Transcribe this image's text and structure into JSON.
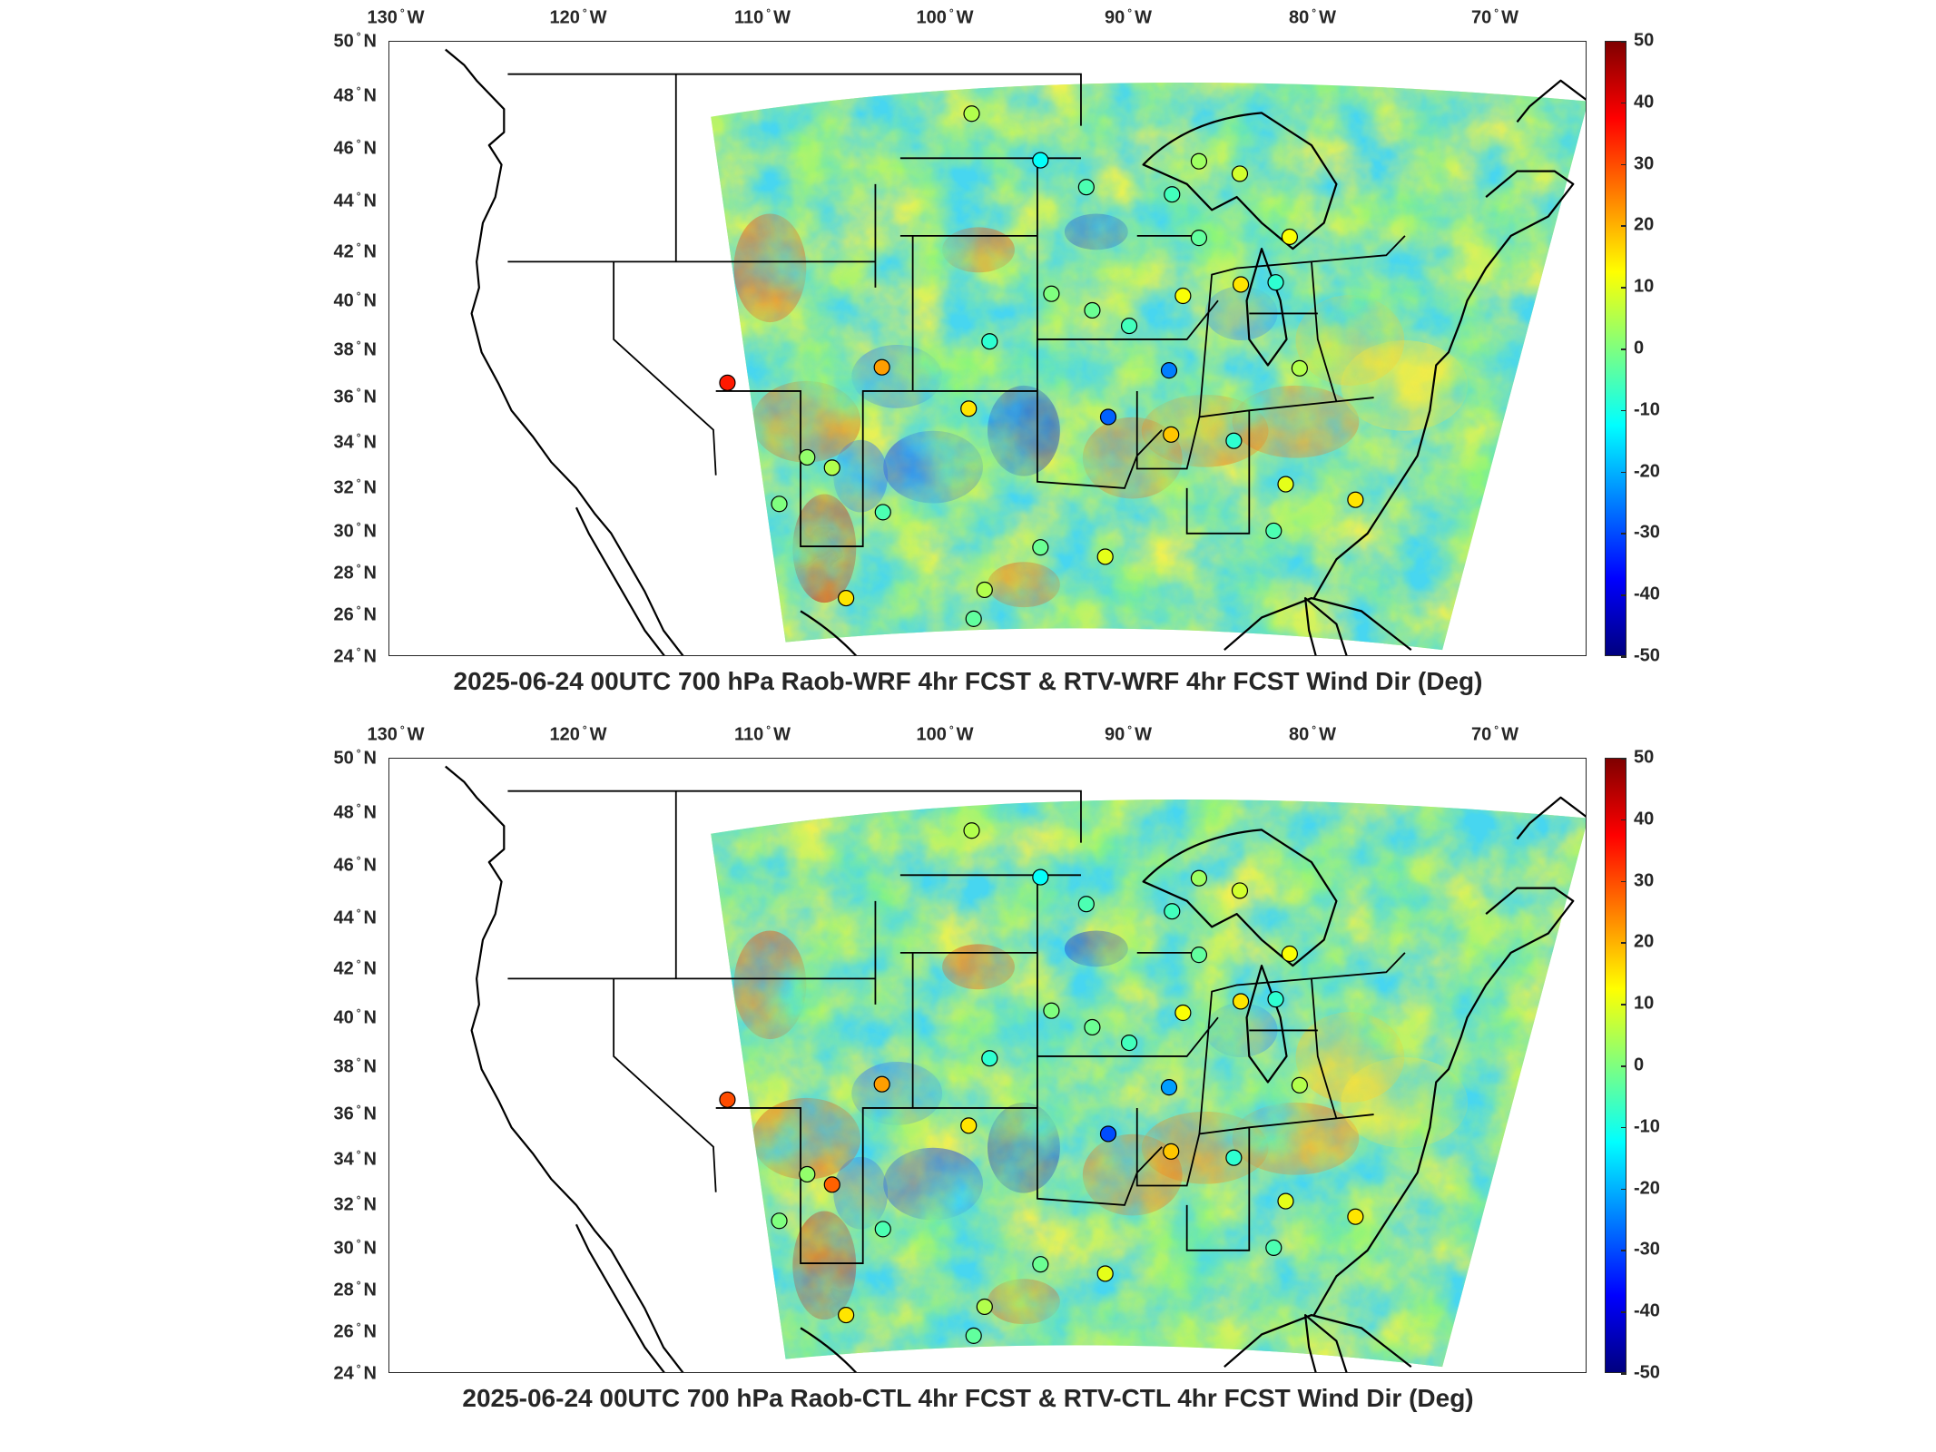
{
  "panels": [
    {
      "title": "2025-06-24 00UTC 700 hPa Raob-WRF 4hr FCST & RTV-WRF 4hr FCST Wind Dir (Deg)",
      "station_values": [
        5,
        -12,
        -5,
        3,
        8,
        12,
        -6,
        -3,
        -8,
        -25,
        -6,
        15,
        0,
        -2,
        22,
        -8,
        15,
        -28,
        18,
        12,
        5,
        -8,
        10,
        35,
        5,
        2,
        0,
        -5,
        15,
        -3,
        5,
        -2,
        10,
        -5,
        25,
        15,
        -5
      ]
    },
    {
      "title": "2025-06-24 00UTC 700 hPa Raob-CTL 4hr FCST & RTV-CTL 4hr FCST Wind Dir (Deg)",
      "station_values": [
        5,
        -12,
        -5,
        3,
        8,
        12,
        -6,
        -3,
        -8,
        -22,
        -6,
        15,
        0,
        -2,
        22,
        -8,
        15,
        -30,
        18,
        12,
        5,
        -8,
        10,
        30,
        28,
        2,
        0,
        -5,
        15,
        -3,
        5,
        -2,
        10,
        -5,
        25,
        15,
        -5
      ]
    }
  ],
  "lon_ticks": [
    "130",
    "120",
    "110",
    "100",
    "90",
    "80",
    "70"
  ],
  "lon_hemisphere": "W",
  "lat_ticks": [
    "50",
    "48",
    "46",
    "44",
    "42",
    "40",
    "38",
    "36",
    "34",
    "32",
    "30",
    "28",
    "26",
    "24"
  ],
  "lat_hemisphere": "N",
  "colorbar": {
    "ticks": [
      "50",
      "40",
      "30",
      "20",
      "10",
      "0",
      "-10",
      "-20",
      "-30",
      "-40",
      "-50"
    ],
    "min": -50,
    "max": 50,
    "colormap": "jet"
  }
}
